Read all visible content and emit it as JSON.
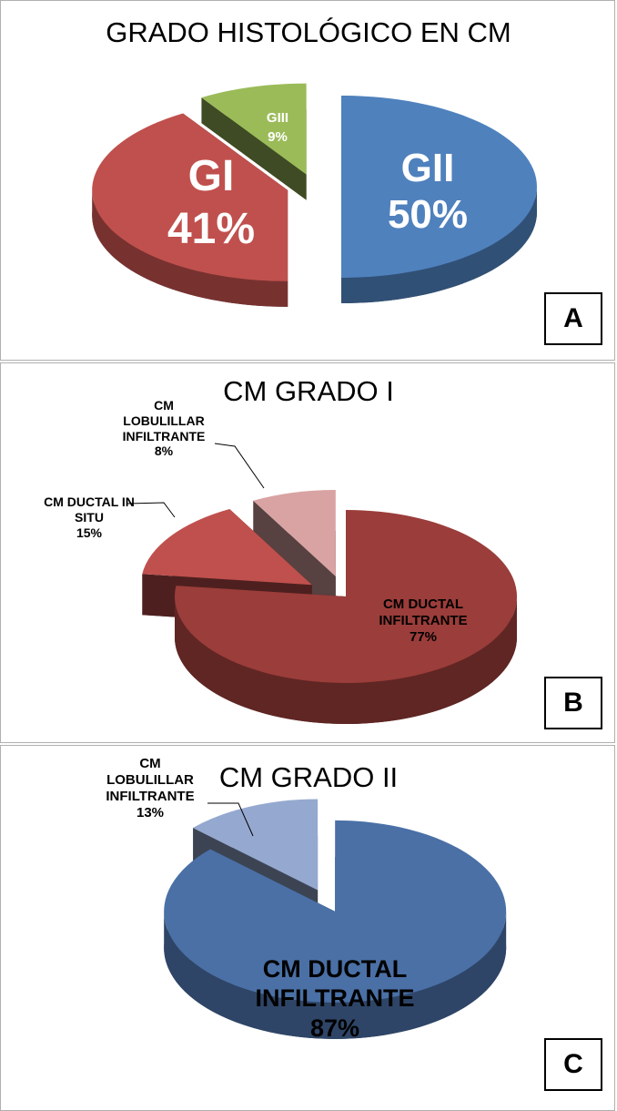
{
  "chart_data": [
    {
      "type": "pie",
      "title": "GRADO HISTOLÓGICO EN CM",
      "panel": "A",
      "categories": [
        "GII",
        "GI",
        "GIII"
      ],
      "values": [
        50,
        41,
        9
      ],
      "value_labels": [
        "50%",
        "41%",
        "9%"
      ],
      "colors": [
        "#4f81bd",
        "#c0504d",
        "#9bbb59"
      ]
    },
    {
      "type": "pie",
      "title": "CM GRADO I",
      "panel": "B",
      "categories": [
        "CM DUCTAL INFILTRANTE",
        "CM DUCTAL IN SITU",
        "CM LOBULILLAR INFILTRANTE"
      ],
      "values": [
        77,
        15,
        8
      ],
      "value_labels": [
        "77%",
        "15%",
        "8%"
      ],
      "colors": [
        "#9b3d3a",
        "#c0504d",
        "#d9a3a3"
      ]
    },
    {
      "type": "pie",
      "title": "CM GRADO II",
      "panel": "C",
      "categories": [
        "CM DUCTAL INFILTRANTE",
        "CM LOBULILLAR INFILTRANTE"
      ],
      "values": [
        87,
        13
      ],
      "value_labels": [
        "87%",
        "13%"
      ],
      "colors": [
        "#4a70a6",
        "#95a9d0"
      ]
    }
  ]
}
